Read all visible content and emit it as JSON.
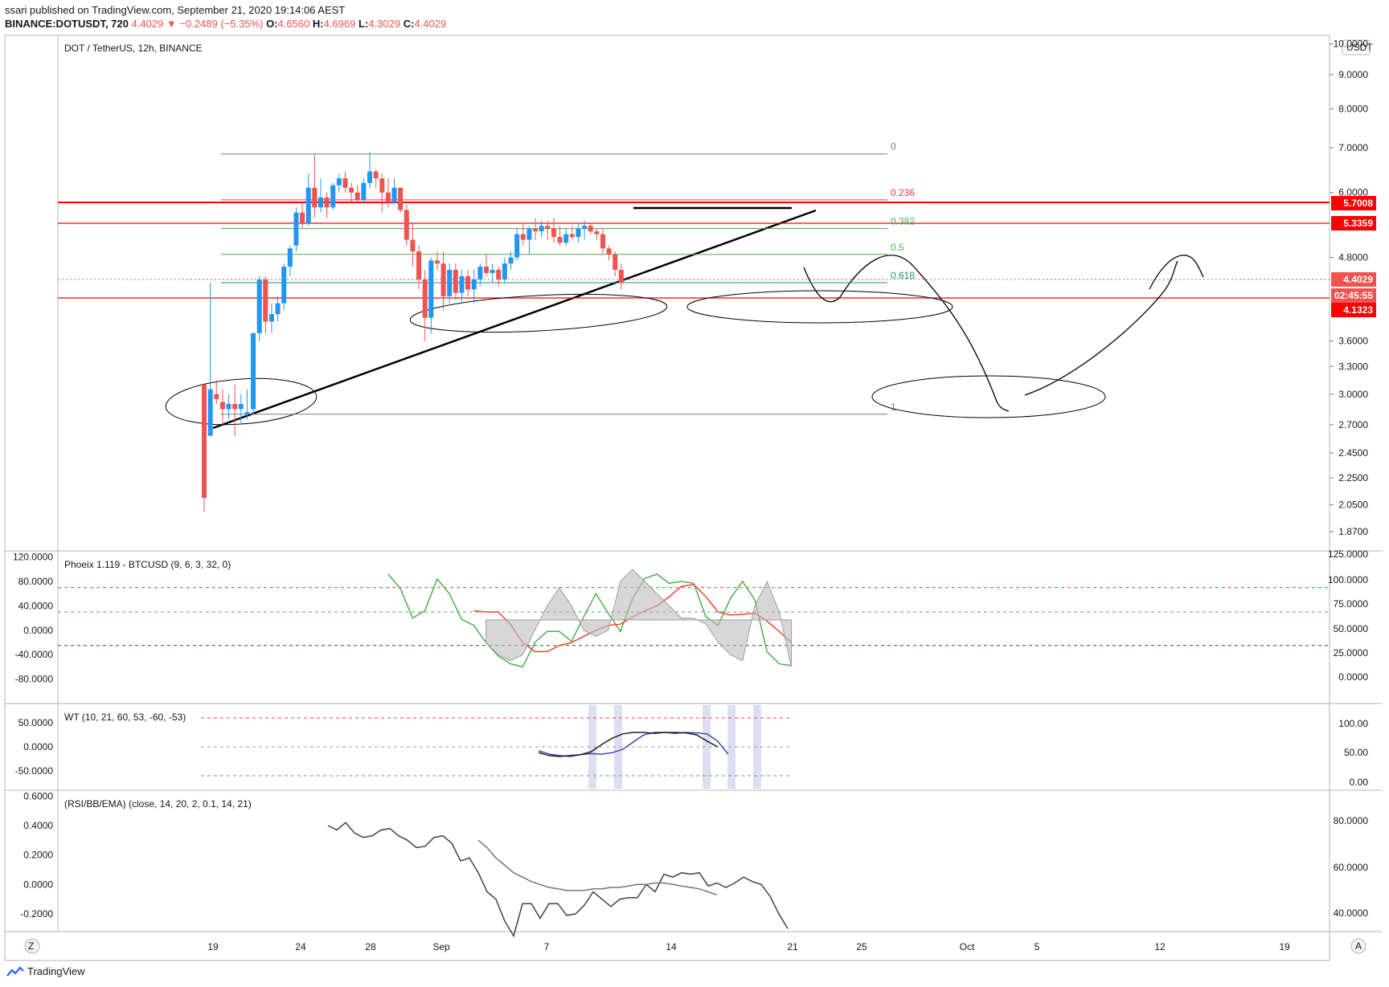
{
  "header": {
    "line1": "ssari published on TradingView.com, September 21, 2020 19:14:06 AEST",
    "symbol": "BINANCE:DOTUSDT, 720",
    "last": "4.4029",
    "change": "−0.2489 (−5.35%)",
    "o_label": "O:",
    "o": "4.6560",
    "h_label": "H:",
    "h": "4.6969",
    "l_label": "L:",
    "l": "4.3029",
    "c_label": "C:",
    "c": "4.4029"
  },
  "footer": {
    "brand": "TradingView"
  },
  "colors": {
    "up": "#2196f3",
    "down": "#ef5350",
    "accent": "#ef5350",
    "grid": "#e0e3eb"
  },
  "chart_data": [
    {
      "type": "candlestick",
      "title": "DOT / TetherUS, 12h, BINANCE",
      "currency": "USDT",
      "y_scale": "log",
      "y_ticks": [
        "10.0000",
        "9.0000",
        "8.0000",
        "7.0000",
        "6.0000",
        "4.8000",
        "3.6000",
        "3.3000",
        "3.0000",
        "2.7000",
        "2.4500",
        "2.2500",
        "2.0500",
        "1.8700"
      ],
      "x_ticks": [
        "19",
        "24",
        "28",
        "Sep",
        "7",
        "14",
        "21",
        "25",
        "Oct",
        "5",
        "12",
        "19"
      ],
      "price_tags": [
        {
          "label": "5.7008",
          "color": "#ff0000"
        },
        {
          "label": "5.3359",
          "color": "#ff0000"
        },
        {
          "label": "4.4029",
          "color": "#ef5350"
        },
        {
          "label": "02:45:55",
          "color": "#ef5350"
        },
        {
          "label": "4.1323",
          "color": "#ff0000"
        }
      ],
      "fib_levels": [
        {
          "label": "0",
          "price": 6.85,
          "color": "#787b86"
        },
        {
          "label": "0.236",
          "price": 5.85,
          "color": "#f23645"
        },
        {
          "label": "0.382",
          "price": 5.3,
          "color": "#4caf50"
        },
        {
          "label": "0.5",
          "price": 4.85,
          "color": "#4caf50"
        },
        {
          "label": "0.618",
          "price": 4.4,
          "color": "#089981"
        },
        {
          "label": "1",
          "price": 2.8,
          "color": "#787b86"
        }
      ],
      "candles": [
        [
          3.1,
          3.1,
          2.0,
          2.1
        ],
        [
          2.6,
          4.4,
          2.6,
          3.05
        ],
        [
          3.0,
          3.15,
          2.9,
          2.95
        ],
        [
          2.92,
          3.05,
          2.7,
          2.85
        ],
        [
          2.85,
          3.0,
          2.75,
          2.9
        ],
        [
          2.9,
          3.1,
          2.6,
          2.85
        ],
        [
          2.85,
          3.0,
          2.7,
          2.9
        ],
        [
          2.8,
          3.05,
          2.75,
          2.82
        ],
        [
          2.85,
          3.7,
          2.8,
          3.7
        ],
        [
          3.7,
          4.5,
          3.6,
          4.45
        ],
        [
          4.45,
          4.5,
          3.7,
          3.85
        ],
        [
          3.85,
          4.1,
          3.7,
          3.95
        ],
        [
          3.95,
          4.2,
          3.85,
          4.1
        ],
        [
          4.1,
          4.7,
          4.0,
          4.65
        ],
        [
          4.65,
          5.0,
          4.5,
          4.95
        ],
        [
          5.0,
          5.7,
          4.9,
          5.6
        ],
        [
          5.6,
          5.8,
          5.3,
          5.4
        ],
        [
          5.4,
          6.4,
          5.35,
          6.1
        ],
        [
          6.1,
          6.85,
          5.5,
          5.7
        ],
        [
          5.7,
          6.3,
          5.6,
          5.9
        ],
        [
          5.9,
          6.0,
          5.5,
          5.7
        ],
        [
          5.7,
          6.2,
          5.65,
          6.15
        ],
        [
          6.15,
          6.4,
          6.0,
          6.3
        ],
        [
          6.3,
          6.45,
          6.0,
          6.1
        ],
        [
          6.1,
          6.2,
          5.8,
          6.0
        ],
        [
          6.0,
          6.15,
          5.8,
          5.85
        ],
        [
          5.85,
          6.3,
          5.8,
          6.2
        ],
        [
          6.2,
          6.9,
          6.1,
          6.45
        ],
        [
          6.45,
          6.5,
          6.1,
          6.3
        ],
        [
          6.3,
          6.4,
          5.6,
          6.0
        ],
        [
          6.0,
          6.3,
          5.7,
          5.8
        ],
        [
          5.8,
          6.3,
          5.75,
          6.1
        ],
        [
          6.1,
          6.1,
          5.6,
          5.65
        ],
        [
          5.65,
          5.75,
          5.0,
          5.1
        ],
        [
          5.1,
          5.4,
          4.65,
          4.9
        ],
        [
          4.9,
          5.0,
          4.3,
          4.45
        ],
        [
          4.45,
          4.6,
          3.6,
          3.9
        ],
        [
          3.9,
          4.8,
          3.7,
          4.75
        ],
        [
          4.75,
          4.9,
          4.6,
          4.7
        ],
        [
          4.7,
          4.9,
          4.0,
          4.2
        ],
        [
          4.2,
          4.7,
          4.1,
          4.6
        ],
        [
          4.6,
          4.7,
          4.15,
          4.25
        ],
        [
          4.25,
          4.6,
          4.1,
          4.5
        ],
        [
          4.5,
          4.6,
          4.2,
          4.3
        ],
        [
          4.3,
          4.6,
          4.1,
          4.45
        ],
        [
          4.45,
          4.7,
          4.35,
          4.65
        ],
        [
          4.65,
          4.85,
          4.5,
          4.55
        ],
        [
          4.55,
          4.7,
          4.4,
          4.6
        ],
        [
          4.6,
          4.65,
          4.35,
          4.45
        ],
        [
          4.45,
          4.8,
          4.4,
          4.7
        ],
        [
          4.7,
          4.9,
          4.6,
          4.8
        ],
        [
          4.8,
          5.3,
          4.75,
          5.2
        ],
        [
          5.2,
          5.4,
          5.0,
          5.1
        ],
        [
          5.1,
          5.35,
          4.85,
          5.3
        ],
        [
          5.3,
          5.5,
          5.1,
          5.25
        ],
        [
          5.25,
          5.45,
          5.15,
          5.35
        ],
        [
          5.35,
          5.45,
          5.1,
          5.3
        ],
        [
          5.3,
          5.5,
          5.05,
          5.15
        ],
        [
          5.15,
          5.35,
          5.0,
          5.05
        ],
        [
          5.05,
          5.3,
          5.0,
          5.2
        ],
        [
          5.2,
          5.35,
          5.1,
          5.15
        ],
        [
          5.15,
          5.4,
          5.05,
          5.3
        ],
        [
          5.3,
          5.45,
          5.1,
          5.35
        ],
        [
          5.35,
          5.4,
          5.2,
          5.25
        ],
        [
          5.25,
          5.3,
          5.1,
          5.2
        ],
        [
          5.2,
          5.3,
          4.85,
          4.95
        ],
        [
          4.95,
          5.0,
          4.75,
          4.85
        ],
        [
          4.85,
          4.9,
          4.5,
          4.6
        ],
        [
          4.6,
          4.7,
          4.3,
          4.4
        ]
      ]
    },
    {
      "type": "line",
      "title": "Phoeix 1.119 - BTCUSD (9, 6, 3, 32, 0)",
      "y_ticks_left": [
        "120.0000",
        "80.0000",
        "40.0000",
        "0.0000",
        "-40.0000",
        "-80.0000"
      ],
      "y_ticks_right": [
        "125.0000",
        "100.0000",
        "75.0000",
        "50.0000",
        "25.0000",
        "0.0000"
      ],
      "series": [
        {
          "color": "#4caf50",
          "values": [
            92,
            68,
            20,
            32,
            84,
            60,
            18,
            8,
            -20,
            -42,
            -55,
            -60,
            -20,
            -2,
            -2,
            -18,
            22,
            60,
            28,
            -2,
            52,
            85,
            92,
            77,
            80,
            77,
            22,
            8,
            52,
            80,
            50,
            -35,
            -55,
            -58
          ]
        },
        {
          "color": "#f44336",
          "values": [
            null,
            null,
            null,
            null,
            null,
            null,
            null,
            32,
            30,
            30,
            10,
            -20,
            -35,
            -35,
            -25,
            -20,
            -10,
            0,
            8,
            10,
            22,
            32,
            40,
            55,
            72,
            75,
            55,
            30,
            25,
            26,
            28,
            15,
            -2,
            -20
          ]
        },
        {
          "color": "#9e9e9e",
          "values": [
            null,
            null,
            null,
            null,
            null,
            null,
            null,
            null,
            -20,
            -40,
            -50,
            -40,
            0,
            40,
            70,
            40,
            0,
            -10,
            0,
            80,
            100,
            80,
            60,
            40,
            20,
            20,
            10,
            -20,
            -40,
            -50,
            40,
            80,
            30,
            -60
          ]
        }
      ],
      "hlines": [
        {
          "value": 70,
          "color": "#f44336"
        },
        {
          "value": 30,
          "color": "#4caf50"
        },
        {
          "value": -25,
          "color": "#1b5e20"
        }
      ]
    },
    {
      "type": "line",
      "title": "WT (10, 21, 60, 53, -60, -53)",
      "y_ticks_left": [
        "50.0000",
        "0.0000",
        "-50.0000"
      ],
      "y_ticks_right": [
        "100.00",
        "50.00",
        "0.00"
      ],
      "series": [
        {
          "color": "#3949ab",
          "values": [
            -8,
            -15,
            -18,
            -20,
            -16,
            -14,
            -15,
            -12,
            -5,
            10,
            25,
            30,
            30,
            28,
            30,
            29,
            27,
            12,
            -15
          ]
        },
        {
          "color": "#212121",
          "values": [
            -12,
            -18,
            -20,
            -18,
            -16,
            -10,
            5,
            18,
            27,
            30,
            30,
            28,
            30,
            30,
            29,
            25,
            12,
            0,
            null
          ]
        }
      ],
      "hlines": [
        {
          "value": 60,
          "color": "#f44336"
        },
        {
          "value": 0,
          "color": "#9e9e9e"
        },
        {
          "value": -60,
          "color": "#4caf50"
        }
      ]
    },
    {
      "type": "line",
      "title": "(RSI/BB/EMA) (close, 14, 20, 2, 0.1, 14, 21)",
      "y_ticks_left": [
        "0.6000",
        "0.4000",
        "0.2000",
        "0.0000",
        "-0.2000"
      ],
      "y_ticks_right": [
        "80.0000",
        "60.0000",
        "40.0000"
      ],
      "series": [
        {
          "color": "#424242",
          "values": [
            0.4,
            0.37,
            0.42,
            0.35,
            0.32,
            0.33,
            0.37,
            0.38,
            0.33,
            0.3,
            0.25,
            0.26,
            0.32,
            0.33,
            0.28,
            0.16,
            0.18,
            0.08,
            -0.05,
            -0.1,
            -0.25,
            -0.35,
            -0.13,
            -0.13,
            -0.23,
            -0.13,
            -0.13,
            -0.21,
            -0.2,
            -0.14,
            -0.05,
            -0.1,
            -0.15,
            -0.1,
            -0.09,
            -0.09,
            0.0,
            -0.05,
            0.07,
            0.05,
            0.08,
            0.07,
            0.08,
            -0.01,
            0.01,
            -0.02,
            0.01,
            0.05,
            0.02,
            0.0,
            -0.08,
            -0.2,
            -0.3
          ]
        },
        {
          "color": "#757575",
          "values": [
            null,
            null,
            null,
            null,
            null,
            null,
            null,
            null,
            null,
            null,
            null,
            null,
            null,
            null,
            null,
            null,
            null,
            0.3,
            0.25,
            0.18,
            0.13,
            0.08,
            0.05,
            0.02,
            0.0,
            -0.02,
            -0.03,
            -0.04,
            -0.04,
            -0.04,
            -0.03,
            -0.03,
            -0.02,
            -0.02,
            -0.01,
            0.0,
            0.0,
            0.01,
            0.01,
            0.0,
            -0.01,
            -0.02,
            -0.03,
            -0.05,
            -0.07
          ]
        }
      ]
    }
  ]
}
